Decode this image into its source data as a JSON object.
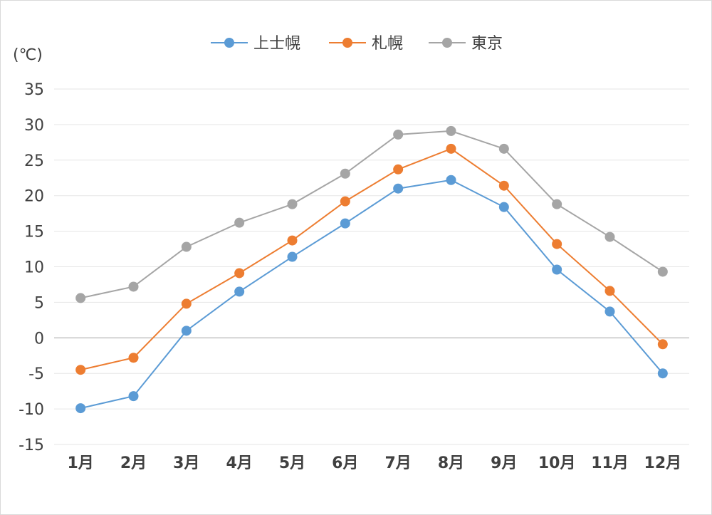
{
  "chart_data": {
    "type": "line",
    "unit_label": "(℃)",
    "categories": [
      "1月",
      "2月",
      "3月",
      "4月",
      "5月",
      "6月",
      "7月",
      "8月",
      "9月",
      "10月",
      "11月",
      "12月"
    ],
    "ylim": [
      -15,
      35
    ],
    "yticks": [
      35,
      30,
      25,
      20,
      15,
      10,
      5,
      0,
      -5,
      -10,
      -15
    ],
    "grid": true,
    "legend_position": "top-center",
    "series": [
      {
        "name": "上士幌",
        "color": "#5b9bd5",
        "values": [
          -9.9,
          -8.2,
          1.0,
          6.5,
          11.4,
          16.1,
          21.0,
          22.2,
          18.4,
          9.6,
          3.7,
          -5.0
        ]
      },
      {
        "name": "札幌",
        "color": "#ed7d31",
        "values": [
          -4.5,
          -2.8,
          4.8,
          9.1,
          13.7,
          19.2,
          23.7,
          26.6,
          21.4,
          13.2,
          6.6,
          -0.9
        ]
      },
      {
        "name": "東京",
        "color": "#a5a5a5",
        "values": [
          5.6,
          7.2,
          12.8,
          16.2,
          18.8,
          23.1,
          28.6,
          29.1,
          26.6,
          18.8,
          14.2,
          9.3
        ]
      }
    ]
  }
}
